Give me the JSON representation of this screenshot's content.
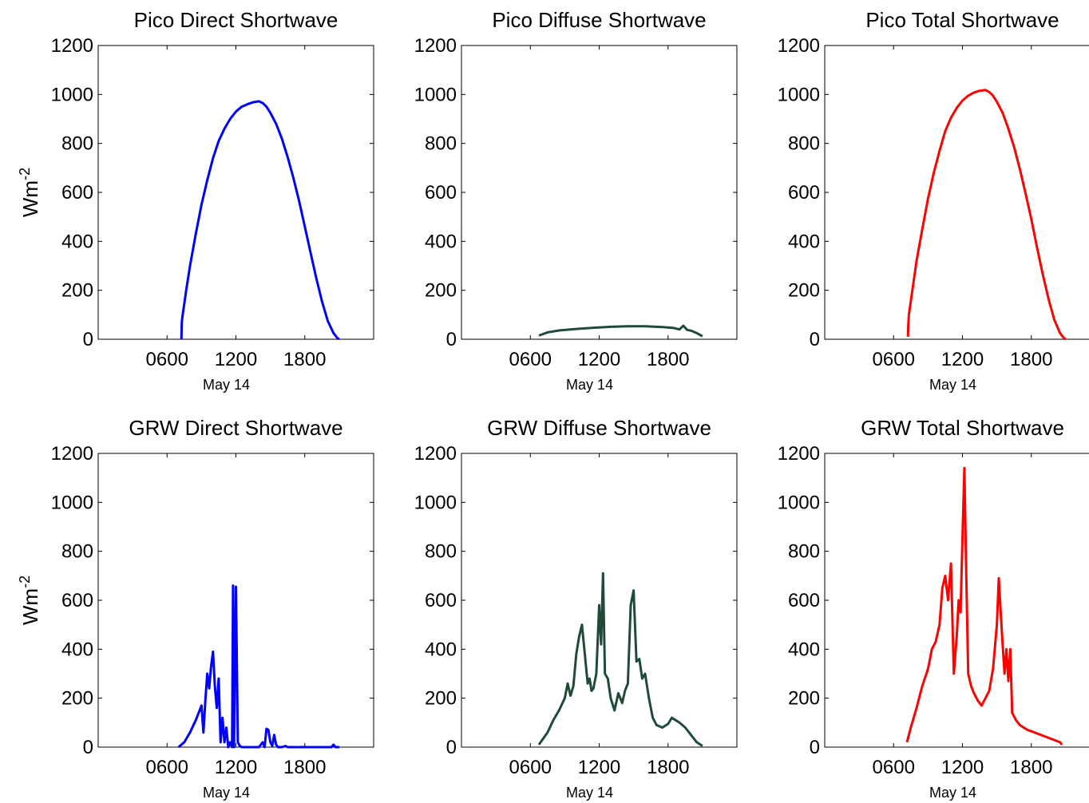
{
  "chart_data": [
    {
      "type": "line",
      "title": "Pico Direct Shortwave",
      "xlabel": "May 14",
      "ylabel": "Wm^-2",
      "xlim": [
        "00:00",
        "24:00"
      ],
      "ylim": [
        0,
        1200
      ],
      "xticks": [
        "0600",
        "1200",
        "1800"
      ],
      "yticks": [
        "0",
        "200",
        "400",
        "600",
        "800",
        "1000",
        "1200"
      ],
      "grid": false,
      "color": "#0000ff",
      "series": [
        {
          "x": [
            "07:15",
            "07:17",
            "07:20",
            "07:40",
            "08:00",
            "08:30",
            "09:00",
            "09:30",
            "10:00",
            "10:30",
            "11:00",
            "11:30",
            "12:00",
            "12:30",
            "13:00",
            "13:30",
            "14:00",
            "14:20",
            "14:40",
            "15:00",
            "15:30",
            "16:00",
            "16:30",
            "17:00",
            "17:30",
            "18:00",
            "18:30",
            "19:00",
            "19:30",
            "20:00",
            "20:30",
            "20:50",
            "21:00"
          ],
          "y": [
            0,
            70,
            90,
            200,
            300,
            430,
            550,
            650,
            740,
            810,
            860,
            900,
            930,
            950,
            960,
            968,
            972,
            965,
            950,
            925,
            880,
            820,
            745,
            660,
            565,
            460,
            355,
            250,
            155,
            75,
            25,
            5,
            0
          ]
        }
      ]
    },
    {
      "type": "line",
      "title": "Pico Diffuse Shortwave",
      "xlabel": "May 14",
      "ylabel": "",
      "xlim": [
        "00:00",
        "24:00"
      ],
      "ylim": [
        0,
        1200
      ],
      "xticks": [
        "0600",
        "1200",
        "1800"
      ],
      "yticks": [
        "0",
        "200",
        "400",
        "600",
        "800",
        "1000",
        "1200"
      ],
      "grid": false,
      "color": "#1f4a36",
      "series": [
        {
          "x": [
            "06:45",
            "07:30",
            "08:30",
            "10:00",
            "11:30",
            "13:00",
            "14:30",
            "16:00",
            "17:30",
            "18:30",
            "19:00",
            "19:20",
            "19:40",
            "20:00",
            "20:30",
            "21:00"
          ],
          "y": [
            15,
            28,
            36,
            42,
            47,
            51,
            53,
            53,
            50,
            46,
            40,
            55,
            38,
            35,
            25,
            12
          ]
        }
      ]
    },
    {
      "type": "line",
      "title": "Pico Total Shortwave",
      "xlabel": "May 14",
      "ylabel": "",
      "xlim": [
        "00:00",
        "24:00"
      ],
      "ylim": [
        0,
        1200
      ],
      "xticks": [
        "0600",
        "1200",
        "1800"
      ],
      "yticks": [
        "0",
        "200",
        "400",
        "600",
        "800",
        "1000",
        "1200"
      ],
      "grid": false,
      "color": "#ff0000",
      "series": [
        {
          "x": [
            "07:15",
            "07:17",
            "07:20",
            "07:40",
            "08:00",
            "08:30",
            "09:00",
            "09:30",
            "10:00",
            "10:30",
            "11:00",
            "11:30",
            "12:00",
            "12:30",
            "13:00",
            "13:30",
            "14:00",
            "14:20",
            "14:40",
            "15:00",
            "15:30",
            "16:00",
            "16:30",
            "17:00",
            "17:30",
            "18:00",
            "18:30",
            "19:00",
            "19:30",
            "20:00",
            "20:30",
            "20:50",
            "21:00"
          ],
          "y": [
            10,
            60,
            100,
            210,
            320,
            450,
            575,
            680,
            770,
            850,
            905,
            945,
            975,
            995,
            1008,
            1015,
            1018,
            1010,
            995,
            970,
            925,
            860,
            785,
            695,
            595,
            490,
            375,
            265,
            165,
            80,
            25,
            5,
            0
          ]
        }
      ]
    },
    {
      "type": "line",
      "title": "GRW Direct Shortwave",
      "xlabel": "May 14",
      "ylabel": "Wm^-2",
      "xlim": [
        "00:00",
        "24:00"
      ],
      "ylim": [
        0,
        1200
      ],
      "xticks": [
        "0600",
        "1200",
        "1800"
      ],
      "yticks": [
        "0",
        "200",
        "400",
        "600",
        "800",
        "1000",
        "1200"
      ],
      "grid": false,
      "color": "#0000ff",
      "series": [
        {
          "x": [
            "07:00",
            "07:30",
            "08:00",
            "08:30",
            "09:00",
            "09:10",
            "09:20",
            "09:30",
            "09:40",
            "09:50",
            "10:00",
            "10:10",
            "10:20",
            "10:30",
            "10:40",
            "10:50",
            "11:00",
            "11:10",
            "11:20",
            "11:30",
            "11:40",
            "11:45",
            "11:50",
            "12:00",
            "12:10",
            "12:20",
            "12:30",
            "12:40",
            "12:50",
            "13:00",
            "13:30",
            "14:00",
            "14:20",
            "14:30",
            "14:40",
            "14:50",
            "15:00",
            "15:10",
            "15:20",
            "15:30",
            "15:40",
            "16:00",
            "16:20",
            "16:30",
            "16:40",
            "17:00",
            "19:00",
            "20:20",
            "20:30",
            "20:40",
            "21:00"
          ],
          "y": [
            0,
            20,
            60,
            110,
            170,
            60,
            190,
            300,
            240,
            330,
            390,
            250,
            160,
            280,
            20,
            120,
            20,
            80,
            0,
            20,
            0,
            660,
            0,
            655,
            20,
            5,
            0,
            0,
            0,
            0,
            0,
            0,
            20,
            0,
            75,
            70,
            20,
            5,
            50,
            10,
            0,
            0,
            5,
            0,
            0,
            0,
            0,
            0,
            10,
            0,
            0
          ]
        }
      ]
    },
    {
      "type": "line",
      "title": "GRW Diffuse Shortwave",
      "xlabel": "May 14",
      "ylabel": "",
      "xlim": [
        "00:00",
        "24:00"
      ],
      "ylim": [
        0,
        1200
      ],
      "xticks": [
        "0600",
        "1200",
        "1800"
      ],
      "yticks": [
        "0",
        "200",
        "400",
        "600",
        "800",
        "1000",
        "1200"
      ],
      "grid": false,
      "color": "#1f4a36",
      "series": [
        {
          "x": [
            "06:45",
            "07:30",
            "08:00",
            "08:30",
            "09:00",
            "09:15",
            "09:30",
            "09:45",
            "10:00",
            "10:15",
            "10:30",
            "10:45",
            "11:00",
            "11:10",
            "11:20",
            "11:30",
            "11:45",
            "12:00",
            "12:10",
            "12:20",
            "12:30",
            "12:45",
            "13:00",
            "13:20",
            "13:40",
            "14:00",
            "14:15",
            "14:30",
            "14:45",
            "15:00",
            "15:15",
            "15:30",
            "15:45",
            "16:00",
            "16:20",
            "16:40",
            "17:00",
            "17:30",
            "18:00",
            "18:20",
            "18:40",
            "19:00",
            "19:30",
            "20:00",
            "20:30",
            "21:00"
          ],
          "y": [
            10,
            60,
            110,
            150,
            200,
            260,
            210,
            250,
            380,
            450,
            500,
            380,
            260,
            280,
            230,
            240,
            300,
            580,
            420,
            710,
            300,
            280,
            200,
            150,
            220,
            180,
            230,
            260,
            580,
            640,
            350,
            360,
            280,
            300,
            200,
            120,
            90,
            80,
            95,
            120,
            110,
            100,
            80,
            50,
            20,
            5
          ]
        }
      ]
    },
    {
      "type": "line",
      "title": "GRW Total Shortwave",
      "xlabel": "May 14",
      "ylabel": "",
      "xlim": [
        "00:00",
        "24:00"
      ],
      "ylim": [
        0,
        1200
      ],
      "xticks": [
        "0600",
        "1200",
        "1800"
      ],
      "yticks": [
        "0",
        "200",
        "400",
        "600",
        "800",
        "1000",
        "1200"
      ],
      "grid": false,
      "color": "#ff0000",
      "series": [
        {
          "x": [
            "07:10",
            "07:30",
            "08:00",
            "08:30",
            "09:00",
            "09:20",
            "09:40",
            "10:00",
            "10:15",
            "10:30",
            "10:45",
            "11:00",
            "11:15",
            "11:30",
            "11:40",
            "11:50",
            "12:00",
            "12:10",
            "12:20",
            "12:30",
            "12:45",
            "13:00",
            "13:20",
            "13:40",
            "14:00",
            "14:20",
            "14:40",
            "15:00",
            "15:10",
            "15:20",
            "15:30",
            "15:40",
            "15:50",
            "16:00",
            "16:10",
            "16:20",
            "16:40",
            "17:00",
            "17:20",
            "17:40",
            "18:00",
            "20:30",
            "20:40"
          ],
          "y": [
            20,
            80,
            160,
            250,
            320,
            400,
            430,
            500,
            650,
            700,
            600,
            750,
            300,
            450,
            600,
            550,
            850,
            1140,
            700,
            300,
            250,
            220,
            190,
            170,
            200,
            230,
            320,
            500,
            690,
            550,
            420,
            300,
            400,
            270,
            400,
            140,
            110,
            90,
            80,
            70,
            65,
            20,
            10
          ]
        }
      ]
    }
  ]
}
